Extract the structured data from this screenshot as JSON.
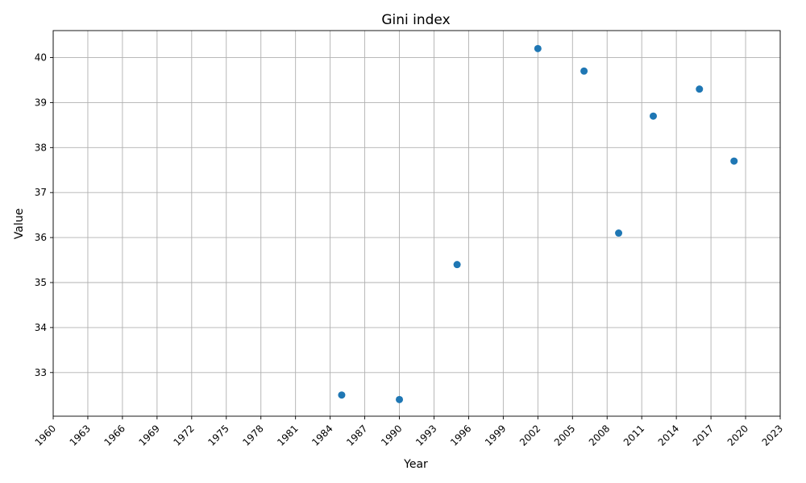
{
  "chart_data": {
    "type": "scatter",
    "title": "Gini index",
    "xlabel": "Year",
    "ylabel": "Value",
    "xlim": [
      1960,
      2023
    ],
    "ylim": [
      32.03,
      40.6
    ],
    "xticks": [
      1960,
      1963,
      1966,
      1969,
      1972,
      1975,
      1978,
      1981,
      1984,
      1987,
      1990,
      1993,
      1996,
      1999,
      2002,
      2005,
      2008,
      2011,
      2014,
      2017,
      2020,
      2023
    ],
    "yticks": [
      33,
      34,
      35,
      36,
      37,
      38,
      39,
      40
    ],
    "grid": true,
    "color": "#1f77b4",
    "points": [
      {
        "x": 1985,
        "y": 32.5
      },
      {
        "x": 1990,
        "y": 32.4
      },
      {
        "x": 1995,
        "y": 35.4
      },
      {
        "x": 2002,
        "y": 40.2
      },
      {
        "x": 2006,
        "y": 39.7
      },
      {
        "x": 2009,
        "y": 36.1
      },
      {
        "x": 2012,
        "y": 38.7
      },
      {
        "x": 2016,
        "y": 39.3
      },
      {
        "x": 2019,
        "y": 37.7
      }
    ]
  }
}
